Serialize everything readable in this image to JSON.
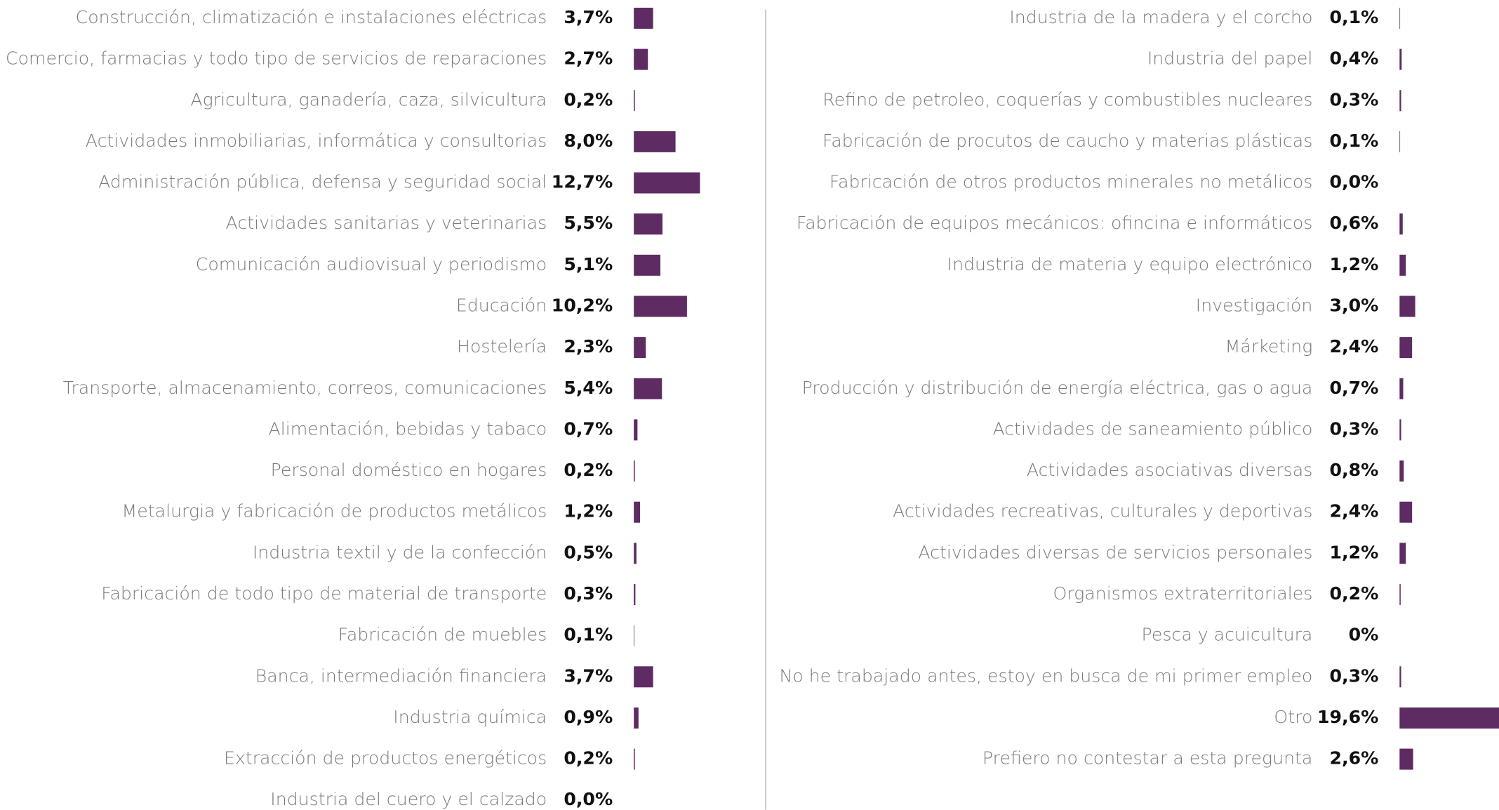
{
  "chart_data": [
    {
      "type": "bar",
      "orientation": "horizontal",
      "color": "#5e2b63",
      "categories": [
        "Construcción, climatización e instalaciones eléctricas",
        "Comercio, farmacias y todo tipo de servicios de reparaciones",
        "Agricultura, ganadería, caza, silvicultura",
        "Actividades inmobiliarias, informática y consultorias",
        "Administración pública, defensa y seguridad social",
        "Actividades sanitarias y veterinarias",
        "Comunicación audiovisual y periodismo",
        "Educación",
        "Hostelería",
        "Transporte, almacenamiento, correos, comunicaciones",
        "Alimentación, bebidas y tabaco",
        "Personal doméstico en hogares",
        "Metalurgia y fabricación de productos metálicos",
        "Industria textil y de la confección",
        "Fabricación de todo tipo de material de transporte",
        "Fabricación de muebles",
        "Banca, intermediación financiera",
        "Industria química",
        "Extracción de productos energéticos",
        "Industria del cuero y el calzado"
      ],
      "values": [
        3.7,
        2.7,
        0.2,
        8.0,
        12.7,
        5.5,
        5.1,
        10.2,
        2.3,
        5.4,
        0.7,
        0.2,
        1.2,
        0.5,
        0.3,
        0.1,
        3.7,
        0.9,
        0.2,
        0.0
      ],
      "value_labels": [
        "3,7%",
        "2,7%",
        "0,2%",
        "8,0%",
        "12,7%",
        "5,5%",
        "5,1%",
        "10,2%",
        "2,3%",
        "5,4%",
        "0,7%",
        "0,2%",
        "1,2%",
        "0,5%",
        "0,3%",
        "0,1%",
        "3,7%",
        "0,9%",
        "0,2%",
        "0,0%"
      ]
    },
    {
      "type": "bar",
      "orientation": "horizontal",
      "color": "#5e2b63",
      "categories": [
        "Industria de la madera y el corcho",
        "Industria del papel",
        "Refino de petroleo, coquerías y combustibles nucleares",
        "Fabricación de procutos de caucho y materias plásticas",
        "Fabricación de otros productos minerales no metálicos",
        "Fabricación de equipos mecánicos: ofincina e informáticos",
        "Industria de materia y equipo electrónico",
        "Investigación",
        "Márketing",
        "Producción y distribución de energía eléctrica, gas o agua",
        "Actividades de saneamiento público",
        "Actividades asociativas diversas",
        "Actividades recreativas, culturales y deportivas",
        "Actividades diversas de servicios personales",
        "Organismos extraterritoriales",
        "Pesca y acuicultura",
        "No he trabajado antes, estoy en busca de mi primer empleo",
        "Otro",
        "Prefiero no contestar a esta pregunta"
      ],
      "values": [
        0.1,
        0.4,
        0.3,
        0.1,
        0.0,
        0.6,
        1.2,
        3.0,
        2.4,
        0.7,
        0.3,
        0.8,
        2.4,
        1.2,
        0.2,
        0,
        0.3,
        19.6,
        2.6
      ],
      "value_labels": [
        "0,1%",
        "0,4%",
        "0,3%",
        "0,1%",
        "0,0%",
        "0,6%",
        "1,2%",
        "3,0%",
        "2,4%",
        "0,7%",
        "0,3%",
        "0,8%",
        "2,4%",
        "1,2%",
        "0,2%",
        "0%",
        "0,3%",
        "19,6%",
        "2,6%"
      ]
    }
  ]
}
